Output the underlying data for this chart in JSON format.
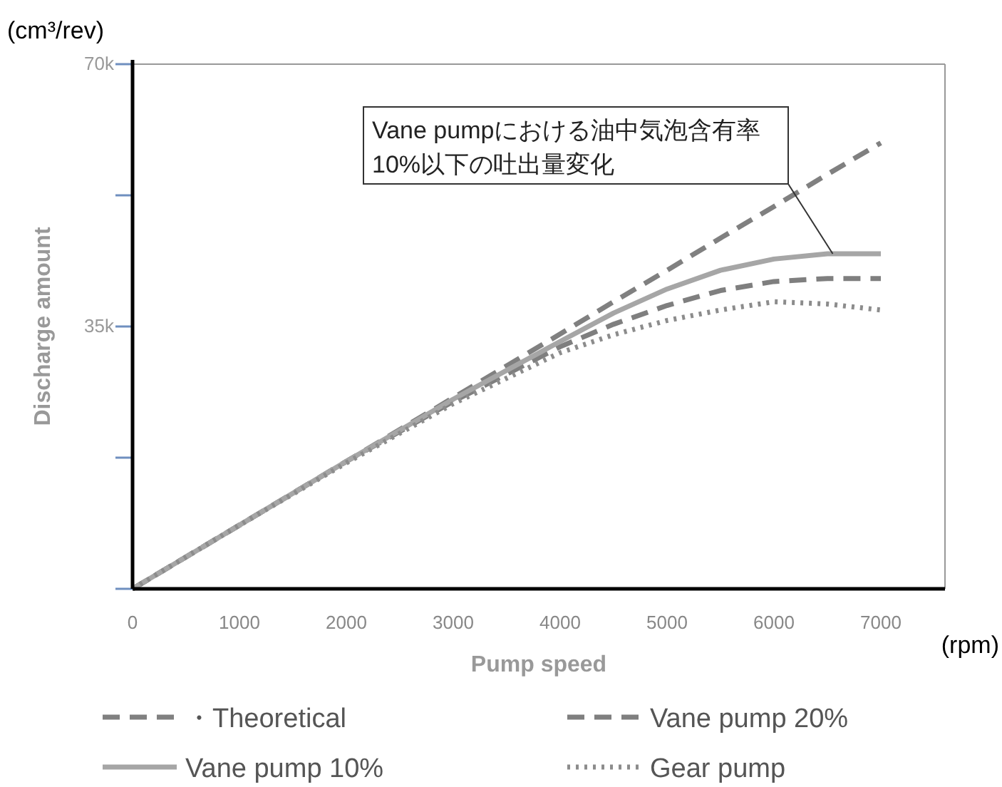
{
  "chart_data": {
    "type": "line",
    "xlabel": "Pump speed",
    "ylabel": "Discharge amount",
    "x": [
      0,
      1000,
      2000,
      3000,
      4000,
      4500,
      5000,
      5500,
      6000,
      6500,
      7000
    ],
    "xlim": [
      0,
      7600
    ],
    "xticks": [
      0,
      1000,
      2000,
      3000,
      4000,
      5000,
      6000,
      7000
    ],
    "ylim": [
      0,
      70000
    ],
    "yticks": [
      {
        "value": 0,
        "label": null
      },
      {
        "value": 17500,
        "label": null
      },
      {
        "value": 35000,
        "label": "35k"
      },
      {
        "value": 52500,
        "label": null
      },
      {
        "value": 70000,
        "label": "70k"
      }
    ],
    "grid": false,
    "legend": "bottom",
    "marker": "none",
    "series": [
      {
        "name": "・Theoretical",
        "color": "#808080",
        "line_style": "dashed",
        "values": [
          0,
          8500,
          17000,
          25500,
          34000,
          38300,
          42500,
          46800,
          51000,
          55300,
          59500
        ]
      },
      {
        "name": "Vane pump 20%",
        "color": "#7f7f7f",
        "line_style": "dashed",
        "values": [
          0,
          8500,
          17000,
          25000,
          32300,
          35300,
          37800,
          39800,
          41000,
          41400,
          41400
        ]
      },
      {
        "name": "Vane pump 10%",
        "color": "#a6a6a6",
        "line_style": "solid",
        "values": [
          0,
          8500,
          17000,
          25300,
          33000,
          36800,
          40000,
          42500,
          44000,
          44700,
          44700
        ]
      },
      {
        "name": "Gear pump",
        "color": "#8c8c8c",
        "line_style": "dotted",
        "values": [
          0,
          8500,
          16800,
          24700,
          31500,
          33900,
          35800,
          37200,
          38300,
          38000,
          37200
        ]
      }
    ],
    "annotations": [
      "(cm³/rev)",
      "(rpm)",
      {
        "text": "Vane pumpにおける油中気泡含有率 10%以下の吐出量変化",
        "x": 6550,
        "y": 44700
      }
    ]
  }
}
